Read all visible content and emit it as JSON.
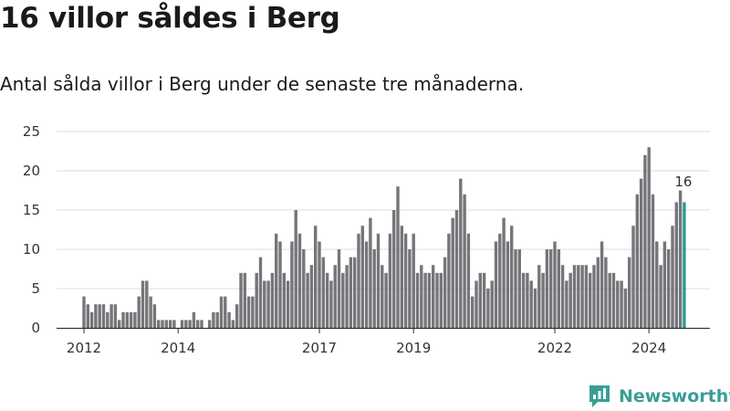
{
  "header": {
    "title": "16 villor såldes i Berg",
    "subtitle": "Antal sålda villor i Berg under de senaste tre månaderna."
  },
  "brand": {
    "name": "Newsworthy"
  },
  "colors": {
    "bar": "#75757a",
    "highlight": "#2a9d8f",
    "grid": "#dcdcdc",
    "brand": "#3a9e96"
  },
  "chart_data": {
    "type": "bar",
    "x_start": "2012-01",
    "x_ticks": [
      "2012",
      "2014",
      "2017",
      "2019",
      "2022",
      "2024"
    ],
    "y_ticks": [
      "0",
      "5",
      "10",
      "15",
      "20",
      "25"
    ],
    "ylim": [
      0,
      25
    ],
    "highlight_label": "16",
    "values": [
      4,
      3,
      2,
      3,
      3,
      3,
      2,
      3,
      3,
      1,
      2,
      2,
      2,
      2,
      4,
      6,
      6,
      4,
      3,
      1,
      1,
      1,
      1,
      1,
      0,
      1,
      1,
      1,
      2,
      1,
      1,
      0,
      1,
      2,
      2,
      4,
      4,
      2,
      1,
      3,
      7,
      7,
      4,
      4,
      7,
      9,
      6,
      6,
      7,
      12,
      11,
      7,
      6,
      11,
      15,
      12,
      10,
      7,
      8,
      13,
      11,
      9,
      7,
      6,
      8,
      10,
      7,
      8,
      9,
      9,
      12,
      13,
      11,
      14,
      10,
      12,
      8,
      7,
      12,
      15,
      18,
      13,
      12,
      10,
      12,
      7,
      8,
      7,
      7,
      8,
      7,
      7,
      9,
      12,
      14,
      15,
      19,
      17,
      12,
      4,
      6,
      7,
      7,
      5,
      6,
      11,
      12,
      14,
      11,
      13,
      10,
      10,
      7,
      7,
      6,
      5,
      8,
      7,
      10,
      10,
      11,
      10,
      8,
      6,
      7,
      8,
      8,
      8,
      8,
      7,
      8,
      9,
      11,
      9,
      7,
      7,
      6,
      6,
      5,
      9,
      13,
      17,
      19,
      22,
      23,
      17,
      11,
      8,
      11,
      10,
      13,
      16,
      17.5,
      16
    ]
  }
}
